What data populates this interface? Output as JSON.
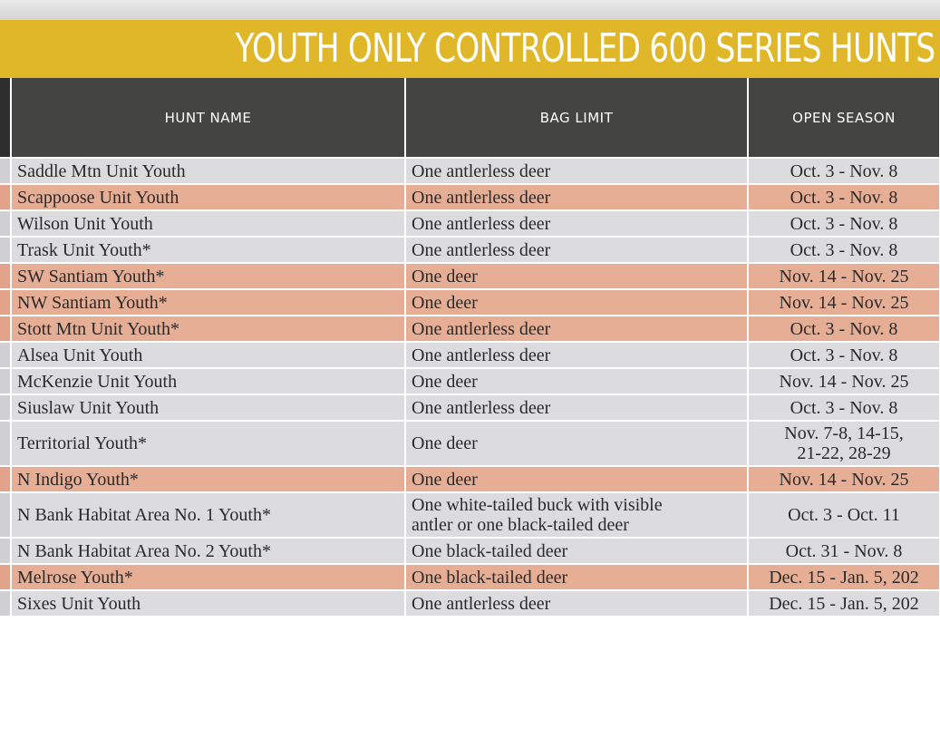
{
  "banner": {
    "title": "YOUTH ONLY CONTROLLED 600 SERIES HUNTS"
  },
  "table": {
    "headers": {
      "hunt_name": "HUNT NAME",
      "bag_limit": "BAG LIMIT",
      "open_season": "OPEN SEASON"
    },
    "rows": [
      {
        "hunt_name": "Saddle Mtn Unit Youth",
        "bag_limit": "One antlerless deer",
        "open_season": "Oct. 3 - Nov. 8",
        "highlight": "gray"
      },
      {
        "hunt_name": "Scappoose Unit Youth",
        "bag_limit": "One antlerless deer",
        "open_season": "Oct. 3 - Nov. 8",
        "highlight": "salmon"
      },
      {
        "hunt_name": "Wilson Unit Youth",
        "bag_limit": "One antlerless deer",
        "open_season": "Oct. 3 - Nov. 8",
        "highlight": "gray"
      },
      {
        "hunt_name": "Trask Unit Youth*",
        "bag_limit": "One antlerless deer",
        "open_season": "Oct. 3 - Nov. 8",
        "highlight": "gray"
      },
      {
        "hunt_name": "SW Santiam Youth*",
        "bag_limit": "One deer",
        "open_season": "Nov. 14 - Nov. 25",
        "highlight": "salmon"
      },
      {
        "hunt_name": "NW Santiam Youth*",
        "bag_limit": "One deer",
        "open_season": "Nov. 14 - Nov. 25",
        "highlight": "salmon"
      },
      {
        "hunt_name": "Stott Mtn Unit Youth*",
        "bag_limit": "One antlerless deer",
        "open_season": "Oct. 3 - Nov. 8",
        "highlight": "salmon"
      },
      {
        "hunt_name": "Alsea Unit Youth",
        "bag_limit": "One antlerless deer",
        "open_season": "Oct. 3 - Nov. 8",
        "highlight": "gray"
      },
      {
        "hunt_name": "McKenzie Unit Youth",
        "bag_limit": "One deer",
        "open_season": "Nov. 14 - Nov. 25",
        "highlight": "gray"
      },
      {
        "hunt_name": "Siuslaw Unit Youth",
        "bag_limit": "One antlerless deer",
        "open_season": "Oct. 3 - Nov. 8",
        "highlight": "gray"
      },
      {
        "hunt_name": "Territorial Youth*",
        "bag_limit": "One deer",
        "open_season_lines": [
          "Nov. 7-8, 14-15,",
          "21-22, 28-29"
        ],
        "highlight": "gray"
      },
      {
        "hunt_name": "N Indigo Youth*",
        "bag_limit": "One deer",
        "open_season": "Nov. 14 - Nov. 25",
        "highlight": "salmon"
      },
      {
        "hunt_name": "N Bank Habitat Area No. 1 Youth*",
        "bag_limit_lines": [
          "One white-tailed buck with visible",
          "antler or one black-tailed deer"
        ],
        "open_season": "Oct. 3 - Oct. 11",
        "highlight": "gray"
      },
      {
        "hunt_name": "N Bank Habitat Area No. 2 Youth*",
        "bag_limit": "One black-tailed deer",
        "open_season": "Oct. 31 - Nov. 8",
        "highlight": "gray"
      },
      {
        "hunt_name": "Melrose Youth*",
        "bag_limit": "One black-tailed deer",
        "open_season": "Dec. 15 - Jan. 5, 202",
        "highlight": "salmon"
      },
      {
        "hunt_name": "Sixes Unit Youth",
        "bag_limit": "One antlerless deer",
        "open_season": "Dec. 15 - Jan. 5, 202",
        "highlight": "gray"
      }
    ]
  }
}
